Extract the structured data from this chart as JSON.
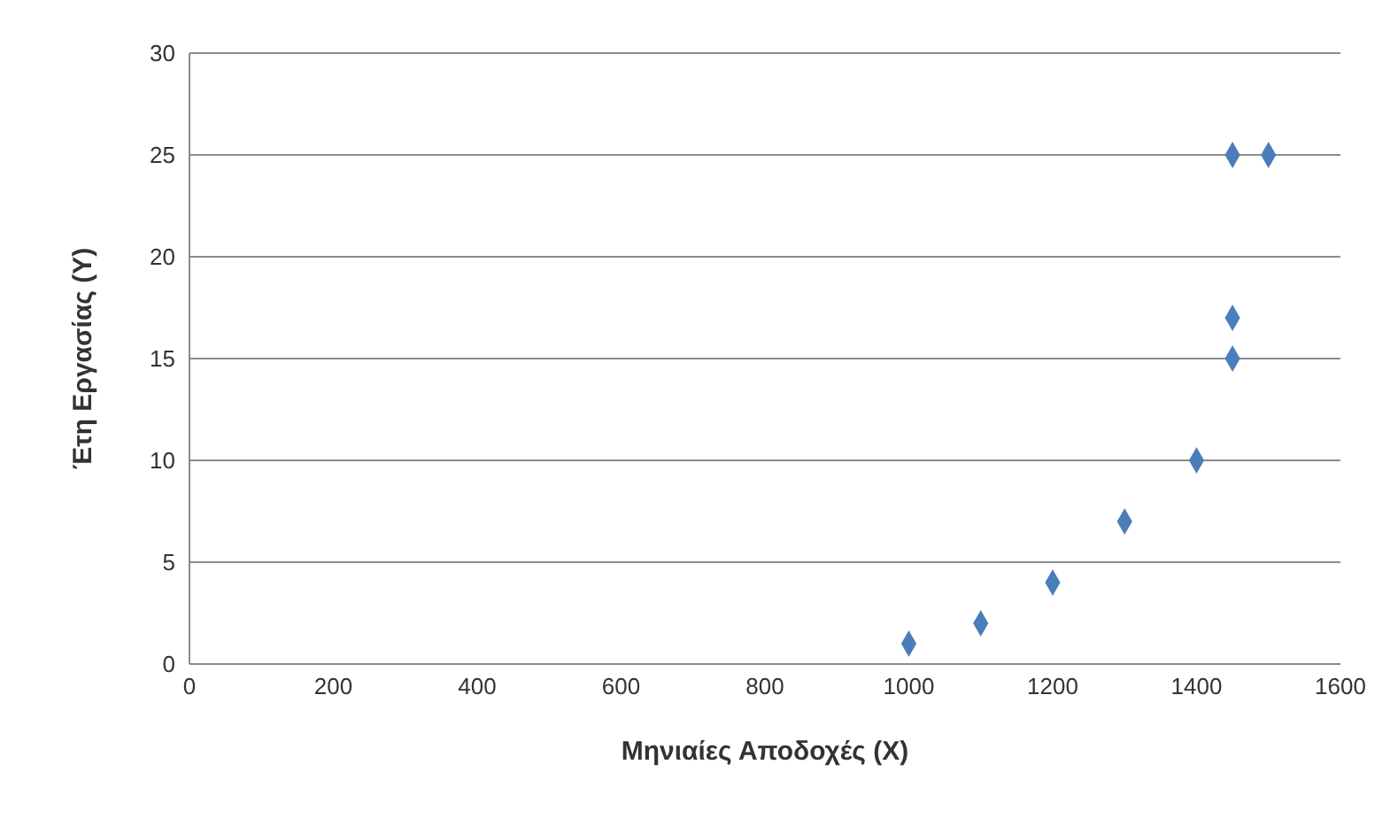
{
  "chart_data": {
    "type": "scatter",
    "xlabel": "Μηνιαίες Αποδοχές (X)",
    "ylabel": "Έτη Εργασίας (Υ)",
    "x": [
      1000,
      1100,
      1200,
      1300,
      1400,
      1450,
      1450,
      1450,
      1500
    ],
    "series": [
      {
        "color": "#4a7ebb",
        "values": [
          1,
          2,
          4,
          7,
          10,
          15,
          17,
          25,
          25
        ]
      }
    ],
    "xlim": [
      0,
      1600
    ],
    "xticks": [
      0,
      200,
      400,
      600,
      800,
      1000,
      1200,
      1400,
      1600
    ],
    "ylim": [
      0,
      30
    ],
    "yticks": [
      0,
      5,
      10,
      15,
      20,
      25,
      30
    ],
    "grid": "y",
    "marker": "diamond"
  }
}
